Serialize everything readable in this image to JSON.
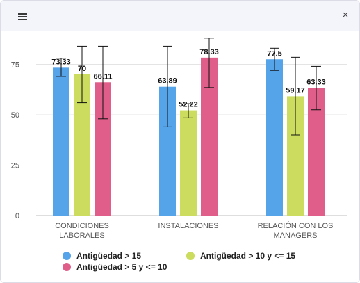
{
  "header": {
    "menu_icon": "hamburger-icon",
    "close_label": "×"
  },
  "colors": {
    "series": [
      "#55a3e8",
      "#cbdc5e",
      "#e05f8a"
    ]
  },
  "chart_data": {
    "type": "bar",
    "categories": [
      [
        "CONDICIONES",
        "LABORALES"
      ],
      [
        "INSTALACIONES"
      ],
      [
        "RELACIÓN CON LOS",
        "MANAGERS"
      ]
    ],
    "series": [
      {
        "name": "Antigüedad > 15",
        "values": [
          73.33,
          63.89,
          77.5
        ],
        "labels": [
          "73.33",
          "63.89",
          "77.5"
        ],
        "error_low": [
          69,
          44,
          72
        ],
        "error_high": [
          78,
          84,
          83
        ]
      },
      {
        "name": "Antigüedad > 10 y <= 15",
        "values": [
          70,
          52.22,
          59.17
        ],
        "labels": [
          "70",
          "52.22",
          "59.17"
        ],
        "error_low": [
          56,
          48.5,
          40
        ],
        "error_high": [
          84,
          55.5,
          78.5
        ]
      },
      {
        "name": "Antigüedad > 5 y <= 10",
        "values": [
          66.11,
          78.33,
          63.33
        ],
        "labels": [
          "66.11",
          "78.33",
          "63.33"
        ],
        "error_low": [
          48,
          63.5,
          52.5
        ],
        "error_high": [
          84,
          88,
          74
        ]
      }
    ],
    "yticks": [
      "0",
      "25",
      "50",
      "75"
    ],
    "ylim": [
      0,
      90
    ],
    "grid": true,
    "legend_position": "bottom"
  }
}
